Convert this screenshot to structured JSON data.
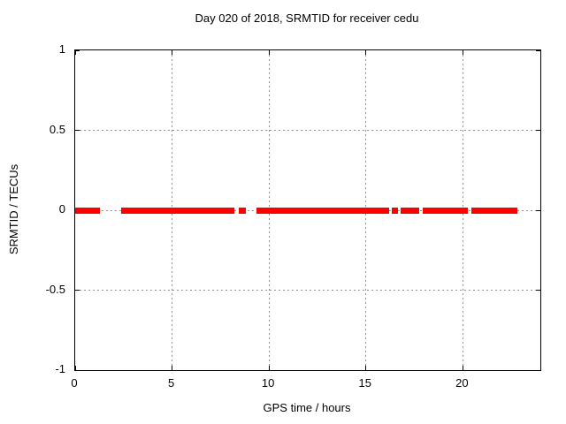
{
  "chart_data": {
    "type": "scatter",
    "title": "Day 020 of 2018, SRMTID for receiver cedu",
    "xlabel": "GPS time / hours",
    "ylabel": "SRMTID / TECUs",
    "xlim": [
      0,
      24
    ],
    "ylim": [
      -1,
      1
    ],
    "xtick_labels": [
      "0",
      "5",
      "10",
      "15",
      "20"
    ],
    "ytick_labels": [
      "1",
      "0.5",
      "0",
      "-0.5",
      "-1"
    ],
    "grid": "dotted",
    "legend": "none",
    "series": [
      {
        "name": "SRMTID",
        "color": "#ff0000",
        "y_value": 0,
        "x_segments_hours": [
          [
            0.0,
            1.28
          ],
          [
            2.37,
            8.21
          ],
          [
            8.44,
            8.8
          ],
          [
            9.35,
            16.19
          ],
          [
            16.33,
            16.65
          ],
          [
            16.79,
            17.76
          ],
          [
            17.94,
            20.27
          ],
          [
            20.45,
            22.81
          ]
        ]
      }
    ]
  },
  "colors": {
    "data": "#ff0000",
    "grid": "#909090",
    "axis": "#000000",
    "background": "#ffffff",
    "text": "#000000"
  }
}
